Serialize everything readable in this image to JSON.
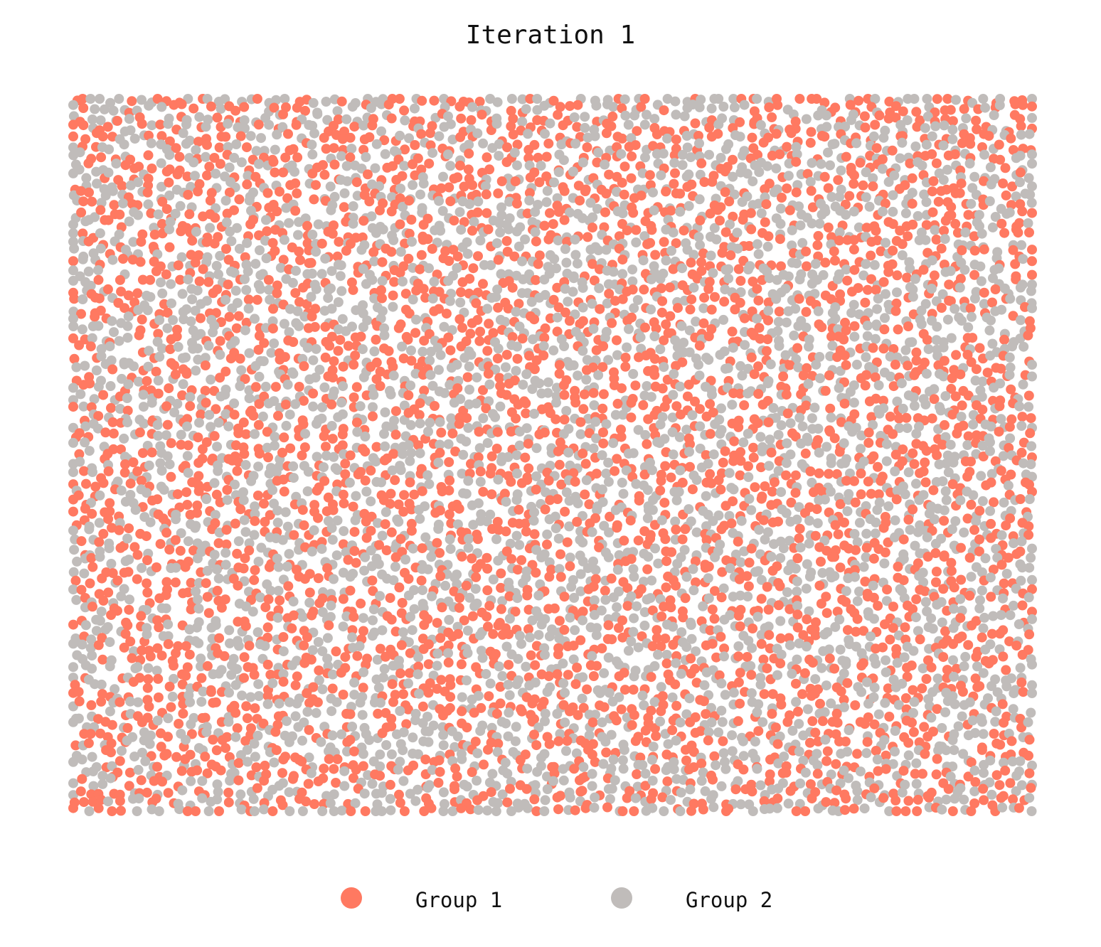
{
  "chart_data": {
    "type": "scatter",
    "title": "Iteration 1",
    "xlabel": "",
    "ylabel": "",
    "axes_visible": false,
    "grid": false,
    "legend_position": "bottom-center",
    "grid_columns": 100,
    "grid_rows": 75,
    "occupancy": 0.9,
    "random_seed": 7,
    "series": [
      {
        "name": "Group 1",
        "color": "#FF7961",
        "share": 0.5
      },
      {
        "name": "Group 2",
        "color": "#C0BCBA",
        "share": 0.5
      }
    ]
  }
}
